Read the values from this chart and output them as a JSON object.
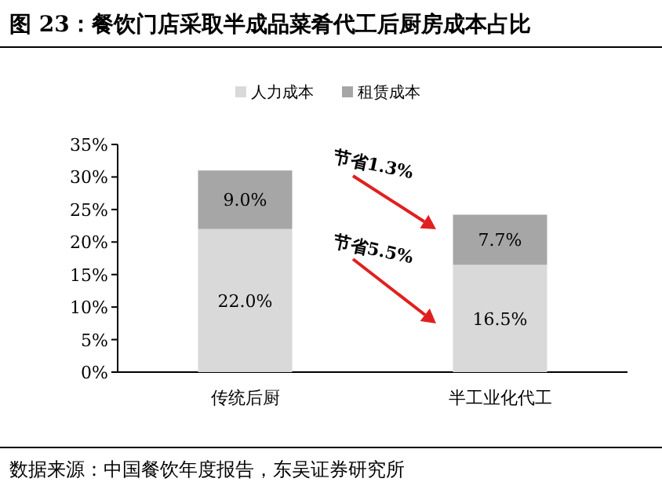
{
  "chart_data": {
    "type": "bar",
    "stacked": true,
    "title": "图 23：餐饮门店采取半成品菜肴代工后厨房成本占比",
    "categories": [
      "传统后厨",
      "半工业化代工"
    ],
    "series": [
      {
        "name": "人力成本",
        "color": "#d9d9d9",
        "values": [
          22.0,
          16.5
        ],
        "value_labels": [
          "22.0%",
          "16.5%"
        ]
      },
      {
        "name": "租赁成本",
        "color": "#a6a6a6",
        "values": [
          9.0,
          7.7
        ],
        "value_labels": [
          "9.0%",
          "7.7%"
        ]
      }
    ],
    "ylim": [
      0,
      35
    ],
    "yticks": [
      {
        "value": 0,
        "label": "0%"
      },
      {
        "value": 5,
        "label": "5%"
      },
      {
        "value": 10,
        "label": "10%"
      },
      {
        "value": 15,
        "label": "15%"
      },
      {
        "value": 20,
        "label": "20%"
      },
      {
        "value": 25,
        "label": "25%"
      },
      {
        "value": 30,
        "label": "30%"
      },
      {
        "value": 35,
        "label": "35%"
      }
    ],
    "legend": "top",
    "grid": false,
    "annotations": [
      "节省1.3%",
      "节省5.5%",
      "数据来源：中国餐饮年度报告，东吴证券研究所"
    ]
  }
}
